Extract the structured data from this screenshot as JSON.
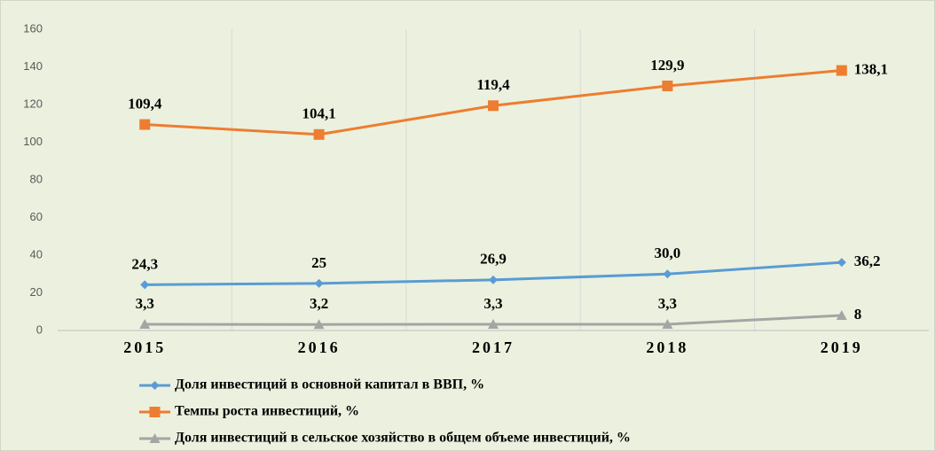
{
  "chart_data": {
    "type": "line",
    "categories": [
      "2015",
      "2016",
      "2017",
      "2018",
      "2019"
    ],
    "series": [
      {
        "name": "Доля инвестиций в основной капитал в ВВП, %",
        "color": "#5b9bd5",
        "marker": "diamond",
        "values": [
          24.3,
          25,
          26.9,
          30.0,
          36.2
        ],
        "value_labels": [
          "24,3",
          "25",
          "26,9",
          "30,0",
          "36,2"
        ]
      },
      {
        "name": "Темпы роста инвестиций, %",
        "color": "#ed7d31",
        "marker": "square",
        "values": [
          109.4,
          104.1,
          119.4,
          129.9,
          138.1
        ],
        "value_labels": [
          "109,4",
          "104,1",
          "119,4",
          "129,9",
          "138,1"
        ]
      },
      {
        "name": "Доля инвестиций в сельское хозяйство в общем объеме инвестиций, %",
        "color": "#a5a5a5",
        "marker": "triangle",
        "values": [
          3.3,
          3.2,
          3.3,
          3.3,
          8
        ],
        "value_labels": [
          "3,3",
          "3,2",
          "3,3",
          "3,3",
          "8"
        ]
      }
    ],
    "ylim": [
      0,
      160
    ],
    "yticks": [
      0,
      20,
      40,
      60,
      80,
      100,
      120,
      140,
      160
    ],
    "grid": true
  }
}
